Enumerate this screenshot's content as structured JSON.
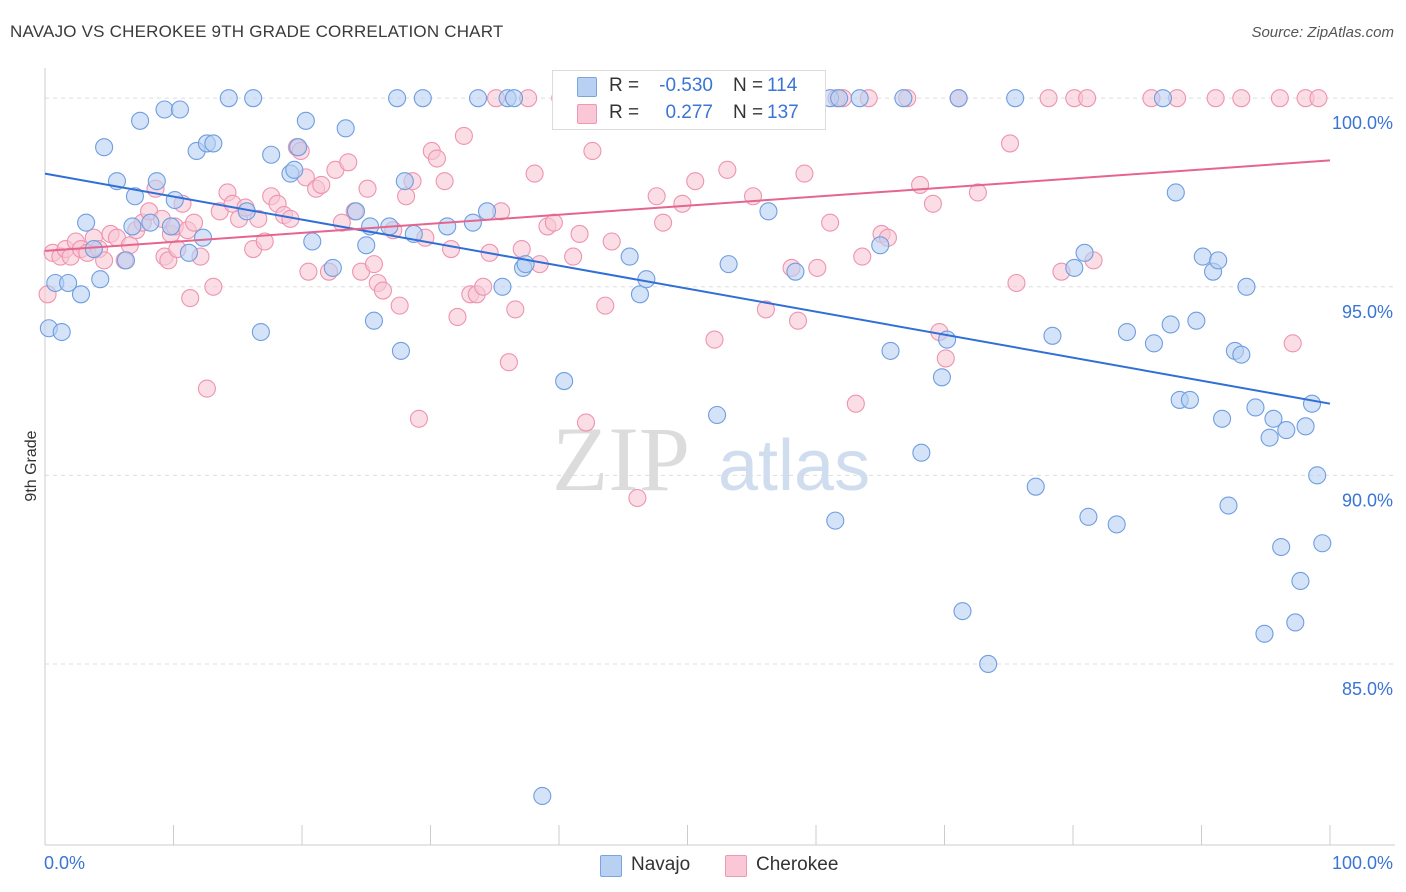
{
  "title": "NAVAJO VS CHEROKEE 9TH GRADE CORRELATION CHART",
  "source": "Source: ZipAtlas.com",
  "watermark": {
    "zip": "ZIP",
    "atlas": "atlas"
  },
  "legend": {
    "rows": [
      {
        "r_label": "R =",
        "r_value": "-0.530",
        "n_label": "N =",
        "n_value": "114"
      },
      {
        "r_label": "R =",
        "r_value": "0.277",
        "n_label": "N =",
        "n_value": "137"
      }
    ]
  },
  "bottom_legend": {
    "items": [
      {
        "label": "Navajo"
      },
      {
        "label": "Cherokee"
      }
    ]
  },
  "colors": {
    "navajo_fill": "#b8d0f2",
    "navajo_stroke": "#6f9ee0",
    "navajo_line": "#2f6fd6",
    "cherokee_fill": "#f9c7d6",
    "cherokee_stroke": "#ee94b0",
    "cherokee_line": "#e5658f",
    "tick_label": "#3a74d4",
    "grid": "#dddddd"
  },
  "chart_data": {
    "type": "scatter",
    "title": "NAVAJO VS CHEROKEE 9TH GRADE CORRELATION CHART",
    "xlabel": "",
    "ylabel": "9th Grade",
    "xlim": [
      0,
      100
    ],
    "ylim": [
      80.2,
      100.8
    ],
    "x_tick_labels": [
      "0.0%",
      "100.0%"
    ],
    "y_ticks": [
      85,
      90,
      95,
      100
    ],
    "y_tick_labels": [
      "85.0%",
      "90.0%",
      "95.0%",
      "100.0%"
    ],
    "grid": "horizontal dashed",
    "legend_position": "top-center",
    "series": [
      {
        "name": "Navajo",
        "r": -0.53,
        "n": 114,
        "trend": {
          "x": [
            0,
            100
          ],
          "y": [
            98.0,
            91.9
          ]
        },
        "points": [
          [
            0.3,
            93.9
          ],
          [
            0.8,
            95.1
          ],
          [
            1.3,
            93.8
          ],
          [
            1.8,
            95.1
          ],
          [
            2.8,
            94.8
          ],
          [
            3.2,
            96.7
          ],
          [
            3.8,
            96.0
          ],
          [
            4.3,
            95.2
          ],
          [
            4.6,
            98.7
          ],
          [
            5.6,
            97.8
          ],
          [
            6.3,
            95.7
          ],
          [
            6.8,
            96.6
          ],
          [
            7.0,
            97.4
          ],
          [
            7.4,
            99.4
          ],
          [
            8.2,
            96.7
          ],
          [
            8.7,
            97.8
          ],
          [
            9.3,
            99.7
          ],
          [
            9.8,
            96.6
          ],
          [
            10.1,
            97.3
          ],
          [
            10.5,
            99.7
          ],
          [
            11.2,
            95.9
          ],
          [
            11.8,
            98.6
          ],
          [
            12.3,
            96.3
          ],
          [
            12.6,
            98.8
          ],
          [
            13.1,
            98.8
          ],
          [
            14.3,
            100.0
          ],
          [
            15.7,
            97.0
          ],
          [
            16.2,
            100.0
          ],
          [
            16.8,
            93.8
          ],
          [
            17.6,
            98.5
          ],
          [
            19.1,
            98.0
          ],
          [
            19.4,
            98.1
          ],
          [
            19.7,
            98.7
          ],
          [
            20.3,
            99.4
          ],
          [
            20.8,
            96.2
          ],
          [
            22.4,
            95.5
          ],
          [
            23.4,
            99.2
          ],
          [
            24.2,
            97.0
          ],
          [
            25.0,
            96.1
          ],
          [
            25.3,
            96.6
          ],
          [
            25.6,
            94.1
          ],
          [
            26.8,
            96.6
          ],
          [
            27.4,
            100.0
          ],
          [
            27.7,
            93.3
          ],
          [
            28.0,
            97.8
          ],
          [
            28.7,
            96.4
          ],
          [
            29.4,
            100.0
          ],
          [
            31.3,
            96.6
          ],
          [
            33.3,
            96.7
          ],
          [
            33.7,
            100.0
          ],
          [
            34.4,
            97.0
          ],
          [
            35.6,
            95.0
          ],
          [
            36.0,
            100.0
          ],
          [
            36.5,
            100.0
          ],
          [
            37.2,
            95.5
          ],
          [
            37.4,
            95.6
          ],
          [
            38.7,
            81.5
          ],
          [
            40.4,
            92.5
          ],
          [
            45.5,
            95.8
          ],
          [
            46.3,
            94.8
          ],
          [
            46.8,
            95.2
          ],
          [
            48.9,
            100.0
          ],
          [
            52.3,
            91.6
          ],
          [
            53.2,
            95.6
          ],
          [
            56.3,
            97.0
          ],
          [
            58.4,
            95.4
          ],
          [
            58.9,
            100.0
          ],
          [
            61.1,
            100.0
          ],
          [
            61.5,
            88.8
          ],
          [
            61.8,
            100.0
          ],
          [
            63.4,
            100.0
          ],
          [
            65.0,
            96.1
          ],
          [
            65.8,
            93.3
          ],
          [
            66.8,
            100.0
          ],
          [
            68.2,
            90.6
          ],
          [
            69.8,
            92.6
          ],
          [
            70.2,
            93.6
          ],
          [
            71.1,
            100.0
          ],
          [
            71.4,
            86.4
          ],
          [
            73.4,
            85.0
          ],
          [
            75.5,
            100.0
          ],
          [
            77.1,
            89.7
          ],
          [
            78.4,
            93.7
          ],
          [
            80.1,
            95.5
          ],
          [
            80.9,
            95.9
          ],
          [
            81.2,
            88.9
          ],
          [
            83.4,
            88.7
          ],
          [
            84.2,
            93.8
          ],
          [
            86.3,
            93.5
          ],
          [
            87.0,
            100.0
          ],
          [
            87.6,
            94.0
          ],
          [
            88.0,
            97.5
          ],
          [
            88.3,
            92.0
          ],
          [
            89.1,
            92.0
          ],
          [
            89.6,
            94.1
          ],
          [
            90.1,
            95.8
          ],
          [
            90.9,
            95.4
          ],
          [
            91.3,
            95.7
          ],
          [
            91.6,
            91.5
          ],
          [
            92.1,
            89.2
          ],
          [
            92.6,
            93.3
          ],
          [
            93.1,
            93.2
          ],
          [
            93.5,
            95.0
          ],
          [
            94.2,
            91.8
          ],
          [
            94.9,
            85.8
          ],
          [
            95.3,
            91.0
          ],
          [
            95.6,
            91.5
          ],
          [
            96.2,
            88.1
          ],
          [
            96.6,
            91.2
          ],
          [
            97.3,
            86.1
          ],
          [
            97.7,
            87.2
          ],
          [
            98.1,
            91.3
          ],
          [
            98.6,
            91.9
          ],
          [
            99.0,
            90.0
          ],
          [
            99.4,
            88.2
          ]
        ]
      },
      {
        "name": "Cherokee",
        "r": 0.277,
        "n": 137,
        "trend": {
          "x": [
            0,
            100
          ],
          "y": [
            95.95,
            98.35
          ]
        },
        "points": [
          [
            0.2,
            94.8
          ],
          [
            0.6,
            95.9
          ],
          [
            1.2,
            95.8
          ],
          [
            1.6,
            96.0
          ],
          [
            2.0,
            95.8
          ],
          [
            2.4,
            96.2
          ],
          [
            2.8,
            96.0
          ],
          [
            3.3,
            95.9
          ],
          [
            3.8,
            96.3
          ],
          [
            4.2,
            96.0
          ],
          [
            4.6,
            95.7
          ],
          [
            5.1,
            96.4
          ],
          [
            5.6,
            96.3
          ],
          [
            6.2,
            95.7
          ],
          [
            6.6,
            96.1
          ],
          [
            7.1,
            96.5
          ],
          [
            7.6,
            96.7
          ],
          [
            8.1,
            97.0
          ],
          [
            8.6,
            97.6
          ],
          [
            9.1,
            96.8
          ],
          [
            9.3,
            95.8
          ],
          [
            9.6,
            95.7
          ],
          [
            9.8,
            96.4
          ],
          [
            10.1,
            96.6
          ],
          [
            10.3,
            96.0
          ],
          [
            10.7,
            97.2
          ],
          [
            11.1,
            96.5
          ],
          [
            11.3,
            94.7
          ],
          [
            11.6,
            96.7
          ],
          [
            12.1,
            95.8
          ],
          [
            12.6,
            92.3
          ],
          [
            13.1,
            95.0
          ],
          [
            13.6,
            97.0
          ],
          [
            14.2,
            97.5
          ],
          [
            14.6,
            97.2
          ],
          [
            15.1,
            96.8
          ],
          [
            15.6,
            97.1
          ],
          [
            16.2,
            96.0
          ],
          [
            16.6,
            96.8
          ],
          [
            17.1,
            96.2
          ],
          [
            17.6,
            97.4
          ],
          [
            18.1,
            97.2
          ],
          [
            18.6,
            96.9
          ],
          [
            19.1,
            96.8
          ],
          [
            19.6,
            98.7
          ],
          [
            19.9,
            98.6
          ],
          [
            20.3,
            97.9
          ],
          [
            20.5,
            95.4
          ],
          [
            21.1,
            97.6
          ],
          [
            21.5,
            97.7
          ],
          [
            22.1,
            95.4
          ],
          [
            22.6,
            98.1
          ],
          [
            23.1,
            96.7
          ],
          [
            23.6,
            98.3
          ],
          [
            24.1,
            97.0
          ],
          [
            24.6,
            95.4
          ],
          [
            25.1,
            97.6
          ],
          [
            25.6,
            95.6
          ],
          [
            25.9,
            95.1
          ],
          [
            26.3,
            94.9
          ],
          [
            27.1,
            96.5
          ],
          [
            27.6,
            94.5
          ],
          [
            28.1,
            97.4
          ],
          [
            28.6,
            97.8
          ],
          [
            29.1,
            91.5
          ],
          [
            29.6,
            96.3
          ],
          [
            30.1,
            98.6
          ],
          [
            30.5,
            98.4
          ],
          [
            31.1,
            97.8
          ],
          [
            31.6,
            96.0
          ],
          [
            32.1,
            94.2
          ],
          [
            32.6,
            99.0
          ],
          [
            33.1,
            94.8
          ],
          [
            33.6,
            94.8
          ],
          [
            34.1,
            95.0
          ],
          [
            34.6,
            95.9
          ],
          [
            35.1,
            100.0
          ],
          [
            35.5,
            97.0
          ],
          [
            36.1,
            93.0
          ],
          [
            36.6,
            94.4
          ],
          [
            37.1,
            96.0
          ],
          [
            37.6,
            100.0
          ],
          [
            38.1,
            98.0
          ],
          [
            38.5,
            95.6
          ],
          [
            39.1,
            96.6
          ],
          [
            39.6,
            96.7
          ],
          [
            40.1,
            100.0
          ],
          [
            41.1,
            95.8
          ],
          [
            41.6,
            96.4
          ],
          [
            42.1,
            91.4
          ],
          [
            42.6,
            98.6
          ],
          [
            43.1,
            100.0
          ],
          [
            43.6,
            94.5
          ],
          [
            44.1,
            96.2
          ],
          [
            44.6,
            100.0
          ],
          [
            45.1,
            100.0
          ],
          [
            46.1,
            89.4
          ],
          [
            47.1,
            100.0
          ],
          [
            47.6,
            97.4
          ],
          [
            48.1,
            96.7
          ],
          [
            49.1,
            100.0
          ],
          [
            49.6,
            97.2
          ],
          [
            50.6,
            97.8
          ],
          [
            51.1,
            100.0
          ],
          [
            52.1,
            93.6
          ],
          [
            52.6,
            100.0
          ],
          [
            53.1,
            98.1
          ],
          [
            54.1,
            100.0
          ],
          [
            55.1,
            97.4
          ],
          [
            56.1,
            94.4
          ],
          [
            57.1,
            100.0
          ],
          [
            58.1,
            95.5
          ],
          [
            58.6,
            94.1
          ],
          [
            59.1,
            98.0
          ],
          [
            60.1,
            95.5
          ],
          [
            61.1,
            96.7
          ],
          [
            61.6,
            100.0
          ],
          [
            62.1,
            100.0
          ],
          [
            63.1,
            91.9
          ],
          [
            63.6,
            95.8
          ],
          [
            64.1,
            100.0
          ],
          [
            65.1,
            96.4
          ],
          [
            65.6,
            96.3
          ],
          [
            67.1,
            100.0
          ],
          [
            68.1,
            97.7
          ],
          [
            69.1,
            97.2
          ],
          [
            69.6,
            93.8
          ],
          [
            70.1,
            93.1
          ],
          [
            71.1,
            100.0
          ],
          [
            72.6,
            97.5
          ],
          [
            75.1,
            98.8
          ],
          [
            75.6,
            95.1
          ],
          [
            78.1,
            100.0
          ],
          [
            79.1,
            95.4
          ],
          [
            80.1,
            100.0
          ],
          [
            81.1,
            100.0
          ],
          [
            81.6,
            95.7
          ],
          [
            86.1,
            100.0
          ],
          [
            88.1,
            100.0
          ],
          [
            91.1,
            100.0
          ],
          [
            93.1,
            100.0
          ],
          [
            96.1,
            100.0
          ],
          [
            97.1,
            93.5
          ],
          [
            98.1,
            100.0
          ],
          [
            99.1,
            100.0
          ]
        ]
      }
    ]
  }
}
